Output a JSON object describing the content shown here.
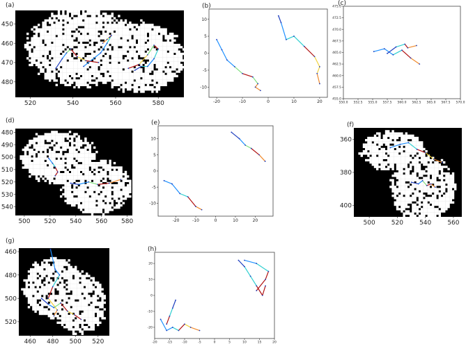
{
  "colors": {
    "mask_bg": "#000000",
    "mask_fg": "#ffffff",
    "axis": "#444444",
    "path_cmap": [
      "#1f3fbf",
      "#1e90ff",
      "#2ecfd0",
      "#7fe07f",
      "#f2d23c",
      "#f08a2c",
      "#b01010"
    ]
  },
  "chart_data": [
    {
      "panel_label": "(a)",
      "type": "heatmap",
      "x_ticks": [
        "520",
        "540",
        "560",
        "580"
      ],
      "y_ticks": [
        "450",
        "460",
        "470",
        "480"
      ],
      "xlim": [
        513,
        592
      ],
      "ylim": [
        443,
        488
      ],
      "y_inverted": true,
      "series": [
        {
          "x": [
            545,
            553,
            556,
            558,
            557,
            556,
            554
          ],
          "y": [
            472,
            465,
            460,
            456,
            457,
            458,
            460
          ]
        },
        {
          "x": [
            532,
            535,
            537,
            539,
            542,
            546,
            552
          ],
          "y": [
            473,
            468,
            465,
            463,
            467,
            469,
            470
          ]
        },
        {
          "x": [
            569,
            572,
            575,
            578,
            580,
            578,
            575,
            571,
            566
          ],
          "y": [
            474,
            472,
            472,
            468,
            463,
            461,
            466,
            471,
            473
          ]
        }
      ]
    },
    {
      "panel_label": "(b)",
      "type": "line",
      "x_ticks": [
        "-20",
        "-10",
        "0",
        "10",
        "20"
      ],
      "y_ticks": [
        "-10",
        "-5",
        "0",
        "5",
        "10"
      ],
      "xlim": [
        -23,
        23
      ],
      "ylim": [
        -13,
        13
      ],
      "series": [
        {
          "x": [
            -20,
            -18,
            -16,
            -13,
            -10,
            -6,
            -4,
            -5,
            -3
          ],
          "y": [
            4,
            1,
            -2,
            -4,
            -6,
            -7,
            -9,
            -10,
            -11
          ]
        },
        {
          "x": [
            4,
            5,
            7,
            10,
            14,
            18,
            20,
            19,
            20
          ],
          "y": [
            11,
            9,
            4,
            5,
            2,
            -1,
            -4,
            -6,
            -9
          ]
        }
      ]
    },
    {
      "panel_label": "(c)",
      "type": "line",
      "x_ticks": [
        "550.0",
        "552.5",
        "555.0",
        "557.5",
        "560.0",
        "562.5",
        "565.0",
        "567.5",
        "570.0"
      ],
      "y_ticks": [
        "455.0",
        "457.5",
        "460.0",
        "462.5",
        "465.0",
        "467.5",
        "470.0",
        "472.5",
        "475.0"
      ],
      "xlim": [
        550,
        570
      ],
      "ylim": [
        455,
        475
      ],
      "series": [
        {
          "x": [
            555.2,
            557,
            558.5,
            560,
            561.5,
            563
          ],
          "y": [
            465.2,
            465.8,
            464.5,
            465.5,
            463.8,
            462.5
          ]
        },
        {
          "x": [
            557.5,
            559,
            560.5,
            561,
            562.5
          ],
          "y": [
            464.8,
            466.2,
            466.8,
            466,
            466.5
          ]
        }
      ]
    },
    {
      "panel_label": "(d)",
      "type": "heatmap",
      "x_ticks": [
        "500",
        "520",
        "540",
        "560",
        "580"
      ],
      "y_ticks": [
        "480",
        "490",
        "500",
        "510",
        "520",
        "530",
        "540"
      ],
      "xlim": [
        493,
        584
      ],
      "ylim": [
        477,
        547
      ],
      "y_inverted": true,
      "series": [
        {
          "x": [
            519,
            522,
            524,
            526,
            524
          ],
          "y": [
            501,
            505,
            508,
            512,
            515
          ]
        },
        {
          "x": [
            536,
            542,
            550,
            557,
            566,
            575
          ],
          "y": [
            521,
            522,
            520,
            522,
            521,
            518
          ]
        }
      ]
    },
    {
      "panel_label": "(e)",
      "type": "line",
      "x_ticks": [
        "-20",
        "-10",
        "0",
        "10",
        "20"
      ],
      "y_ticks": [
        "-10",
        "-5",
        "0",
        "5",
        "10"
      ],
      "xlim": [
        -29,
        29
      ],
      "ylim": [
        -14,
        14
      ],
      "series": [
        {
          "x": [
            -26,
            -22,
            -18,
            -14,
            -10,
            -7
          ],
          "y": [
            -3,
            -4,
            -7,
            -8,
            -11,
            -12
          ]
        },
        {
          "x": [
            8,
            12,
            15,
            18,
            22,
            25
          ],
          "y": [
            12,
            10,
            8,
            7,
            5,
            3
          ]
        }
      ]
    },
    {
      "panel_label": "(f)",
      "type": "heatmap",
      "x_ticks": [
        "500",
        "520",
        "540",
        "560"
      ],
      "y_ticks": [
        "360",
        "380",
        "400"
      ],
      "xlim": [
        489,
        566
      ],
      "ylim": [
        353,
        407
      ],
      "y_inverted": true,
      "series": [
        {
          "x": [
            515,
            522,
            528,
            534,
            540,
            546,
            552
          ],
          "y": [
            365,
            363,
            362,
            366,
            368,
            372,
            374
          ]
        },
        {
          "x": [
            530,
            535,
            538,
            541,
            544,
            547
          ],
          "y": [
            386,
            387,
            385,
            388,
            387,
            389
          ]
        }
      ]
    },
    {
      "panel_label": "(g)",
      "type": "heatmap",
      "x_ticks": [
        "460",
        "480",
        "500",
        "520"
      ],
      "y_ticks": [
        "460",
        "480",
        "500",
        "520"
      ],
      "xlim": [
        450,
        530
      ],
      "ylim": [
        457,
        532
      ],
      "y_inverted": true,
      "series": [
        {
          "x": [
            478,
            482,
            486,
            480,
            476,
            484,
            481
          ],
          "y": [
            458,
            475,
            480,
            490,
            500,
            510,
            515
          ]
        },
        {
          "x": [
            470,
            476,
            481,
            487,
            493,
            499,
            505
          ],
          "y": [
            500,
            505,
            508,
            504,
            511,
            514,
            518
          ]
        }
      ]
    },
    {
      "panel_label": "(h)",
      "type": "line",
      "x_ticks": [
        "-20",
        "-15",
        "-10",
        "-5",
        "0",
        "5",
        "10",
        "15",
        "20"
      ],
      "y_ticks": [
        "-20",
        "-10",
        "0",
        "10",
        "20"
      ],
      "xlim": [
        -20,
        20
      ],
      "ylim": [
        -27,
        27
      ],
      "series": [
        {
          "x": [
            -18,
            -16,
            -14,
            -12,
            -10,
            -8,
            -5
          ],
          "y": [
            -15,
            -22,
            -20,
            -22,
            -18,
            -20,
            -22
          ]
        },
        {
          "x": [
            -13,
            -14,
            -15,
            -16
          ],
          "y": [
            -3,
            -8,
            -13,
            -18
          ]
        },
        {
          "x": [
            8,
            10,
            12,
            14,
            16,
            17
          ],
          "y": [
            22,
            18,
            12,
            6,
            0,
            6
          ]
        },
        {
          "x": [
            10,
            14,
            18,
            17,
            14
          ],
          "y": [
            22,
            20,
            15,
            10,
            3
          ]
        }
      ]
    }
  ]
}
